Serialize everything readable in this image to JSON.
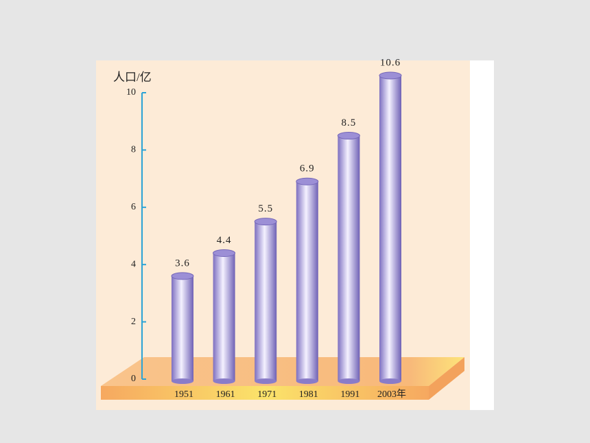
{
  "chart_data": {
    "type": "bar",
    "y_label": "人口/亿",
    "categories": [
      "1951",
      "1961",
      "1971",
      "1981",
      "1991",
      "2003年"
    ],
    "values": [
      3.6,
      4.4,
      5.5,
      6.9,
      8.5,
      10.6
    ],
    "color": "#9c8fd6",
    "ylim": [
      0,
      10
    ],
    "yticks": [
      0,
      2,
      4,
      6,
      8,
      10
    ]
  }
}
